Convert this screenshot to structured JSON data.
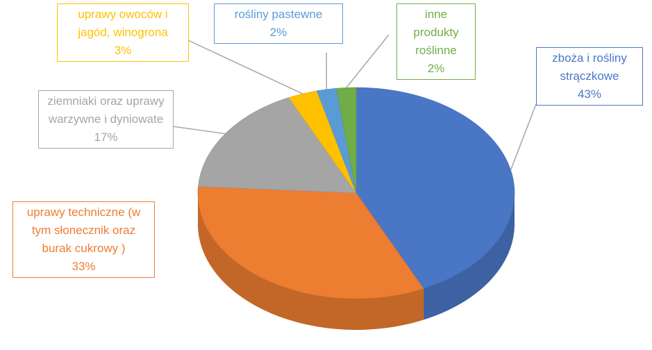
{
  "chart_data": {
    "type": "pie3d",
    "categories": [
      "zboża i rośliny strączkowe",
      "uprawy techniczne (w tym słonecznik oraz burak cukrowy )",
      "ziemniaki oraz uprawy warzywne i dyniowate",
      "uprawy owoców i jagód, winogrona",
      "rośliny pastewne",
      "inne produkty roślinne"
    ],
    "values": [
      43,
      33,
      17,
      3,
      2,
      2
    ],
    "value_labels": [
      "43%",
      "33%",
      "17%",
      "3%",
      "2%",
      "2%"
    ],
    "colors": [
      "#4a76c6",
      "#ed7d31",
      "#a5a5a5",
      "#ffc000",
      "#5b9bd5",
      "#70ad47"
    ]
  }
}
